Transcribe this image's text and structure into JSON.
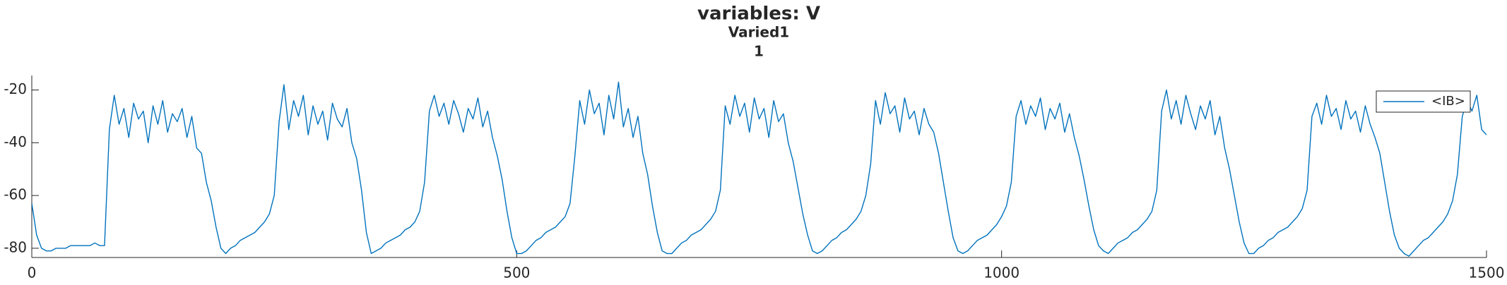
{
  "chart_data": {
    "type": "line",
    "title_lines": [
      "variables: V",
      "Varied1",
      "1"
    ],
    "x": [
      0,
      5,
      10,
      15,
      20,
      25,
      30,
      35,
      40,
      45,
      50,
      55,
      60,
      65,
      70,
      75,
      80,
      85,
      90,
      95,
      100,
      105,
      110,
      115,
      120,
      125,
      130,
      135,
      140,
      145,
      150,
      155,
      160,
      165,
      170,
      175,
      180,
      185,
      190,
      195,
      200,
      205,
      210,
      215,
      220,
      225,
      230,
      235,
      240,
      245,
      250,
      255,
      260,
      265,
      270,
      275,
      280,
      285,
      290,
      295,
      300,
      305,
      310,
      315,
      320,
      325,
      330,
      335,
      340,
      345,
      350,
      355,
      360,
      365,
      370,
      375,
      380,
      385,
      390,
      395,
      400,
      405,
      410,
      415,
      420,
      425,
      430,
      435,
      440,
      445,
      450,
      455,
      460,
      465,
      470,
      475,
      480,
      485,
      490,
      495,
      500,
      505,
      510,
      515,
      520,
      525,
      530,
      535,
      540,
      545,
      550,
      555,
      560,
      565,
      570,
      575,
      580,
      585,
      590,
      595,
      600,
      605,
      610,
      615,
      620,
      625,
      630,
      635,
      640,
      645,
      650,
      655,
      660,
      665,
      670,
      675,
      680,
      685,
      690,
      695,
      700,
      705,
      710,
      715,
      720,
      725,
      730,
      735,
      740,
      745,
      750,
      755,
      760,
      765,
      770,
      775,
      780,
      785,
      790,
      795,
      800,
      805,
      810,
      815,
      820,
      825,
      830,
      835,
      840,
      845,
      850,
      855,
      860,
      865,
      870,
      875,
      880,
      885,
      890,
      895,
      900,
      905,
      910,
      915,
      920,
      925,
      930,
      935,
      940,
      945,
      950,
      955,
      960,
      965,
      970,
      975,
      980,
      985,
      990,
      995,
      1000,
      1005,
      1010,
      1015,
      1020,
      1025,
      1030,
      1035,
      1040,
      1045,
      1050,
      1055,
      1060,
      1065,
      1070,
      1075,
      1080,
      1085,
      1090,
      1095,
      1100,
      1105,
      1110,
      1115,
      1120,
      1125,
      1130,
      1135,
      1140,
      1145,
      1150,
      1155,
      1160,
      1165,
      1170,
      1175,
      1180,
      1185,
      1190,
      1195,
      1200,
      1205,
      1210,
      1215,
      1220,
      1225,
      1230,
      1235,
      1240,
      1245,
      1250,
      1255,
      1260,
      1265,
      1270,
      1275,
      1280,
      1285,
      1290,
      1295,
      1300,
      1305,
      1310,
      1315,
      1320,
      1325,
      1330,
      1335,
      1340,
      1345,
      1350,
      1355,
      1360,
      1365,
      1370,
      1375,
      1380,
      1385,
      1390,
      1395,
      1400,
      1405,
      1410,
      1415,
      1420,
      1425,
      1430,
      1435,
      1440,
      1445,
      1450,
      1455,
      1460,
      1465,
      1470,
      1475,
      1480,
      1485,
      1490,
      1495,
      1500
    ],
    "series": [
      {
        "name": "<IB>",
        "color": "#0072bd",
        "values": [
          -63,
          -75,
          -80,
          -81,
          -81,
          -80,
          -80,
          -80,
          -79,
          -79,
          -79,
          -79,
          -79,
          -78,
          -79,
          -79,
          -35,
          -22,
          -33,
          -27,
          -38,
          -25,
          -31,
          -28,
          -40,
          -26,
          -33,
          -24,
          -36,
          -29,
          -32,
          -27,
          -38,
          -30,
          -42,
          -44,
          -55,
          -62,
          -72,
          -80,
          -82,
          -80,
          -79,
          -77,
          -76,
          -75,
          -74,
          -72,
          -70,
          -67,
          -60,
          -32,
          -18,
          -35,
          -24,
          -30,
          -22,
          -37,
          -26,
          -33,
          -28,
          -39,
          -25,
          -31,
          -34,
          -27,
          -40,
          -46,
          -58,
          -74,
          -82,
          -81,
          -80,
          -78,
          -77,
          -76,
          -75,
          -73,
          -72,
          -70,
          -66,
          -55,
          -28,
          -22,
          -30,
          -25,
          -33,
          -24,
          -29,
          -36,
          -27,
          -31,
          -23,
          -34,
          -28,
          -38,
          -45,
          -54,
          -66,
          -76,
          -82,
          -82,
          -81,
          -79,
          -77,
          -76,
          -74,
          -73,
          -72,
          -70,
          -68,
          -63,
          -45,
          -24,
          -33,
          -20,
          -29,
          -25,
          -37,
          -22,
          -31,
          -17,
          -34,
          -27,
          -38,
          -30,
          -44,
          -52,
          -64,
          -74,
          -81,
          -82,
          -82,
          -80,
          -78,
          -77,
          -75,
          -74,
          -73,
          -71,
          -69,
          -66,
          -58,
          -26,
          -33,
          -22,
          -30,
          -25,
          -36,
          -23,
          -31,
          -27,
          -38,
          -24,
          -32,
          -29,
          -40,
          -47,
          -57,
          -67,
          -75,
          -81,
          -82,
          -81,
          -79,
          -77,
          -76,
          -74,
          -73,
          -71,
          -69,
          -66,
          -60,
          -48,
          -24,
          -33,
          -21,
          -29,
          -26,
          -36,
          -23,
          -31,
          -28,
          -37,
          -27,
          -33,
          -36,
          -44,
          -55,
          -66,
          -76,
          -81,
          -82,
          -81,
          -79,
          -77,
          -76,
          -75,
          -73,
          -71,
          -68,
          -64,
          -55,
          -30,
          -24,
          -33,
          -26,
          -30,
          -23,
          -35,
          -27,
          -31,
          -25,
          -36,
          -29,
          -38,
          -45,
          -54,
          -64,
          -73,
          -79,
          -81,
          -82,
          -80,
          -78,
          -77,
          -76,
          -74,
          -73,
          -71,
          -69,
          -66,
          -58,
          -28,
          -20,
          -31,
          -24,
          -33,
          -22,
          -29,
          -35,
          -26,
          -31,
          -24,
          -37,
          -30,
          -42,
          -50,
          -60,
          -70,
          -78,
          -82,
          -82,
          -80,
          -79,
          -77,
          -76,
          -74,
          -73,
          -72,
          -70,
          -68,
          -65,
          -58,
          -30,
          -25,
          -33,
          -22,
          -30,
          -27,
          -35,
          -24,
          -31,
          -28,
          -36,
          -26,
          -33,
          -38,
          -44,
          -55,
          -66,
          -75,
          -80,
          -82,
          -83,
          -81,
          -79,
          -77,
          -76,
          -74,
          -72,
          -70,
          -67,
          -62,
          -52,
          -30,
          -24,
          -28,
          -22,
          -35,
          -37
        ]
      }
    ],
    "xlim": [
      0,
      1500
    ],
    "xticks": [
      0,
      500,
      1000,
      1500
    ],
    "ylim": [
      -83.5,
      -14.5
    ],
    "yticks": [
      -80,
      -60,
      -40,
      -20
    ],
    "legend": "northeast"
  }
}
